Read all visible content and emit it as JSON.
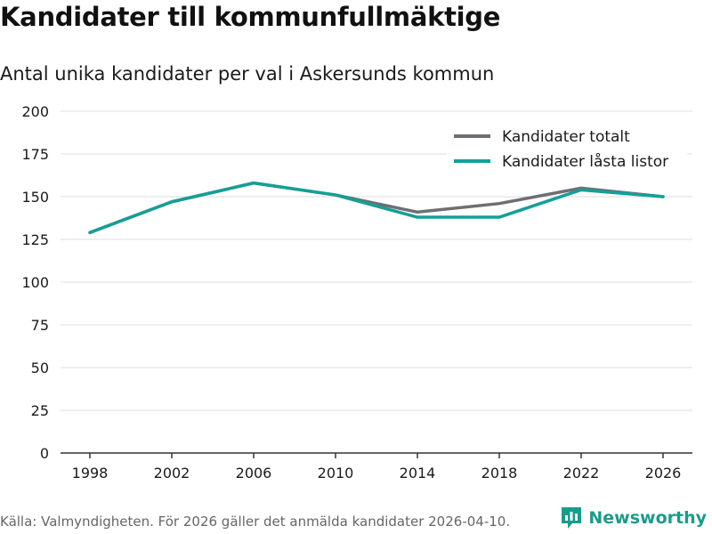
{
  "header": {
    "title": "Kandidater till kommunfullmäktige",
    "subtitle": "Antal unika kandidater per val i Askersunds kommun"
  },
  "footer": {
    "source": "Källa: Valmyndigheten. För 2026 gäller det anmälda kandidater 2026-04-10.",
    "brand": "Newsworthy",
    "brand_icon": "bar-chart-logo-icon"
  },
  "colors": {
    "total": "#6e6e73",
    "locked": "#14a096",
    "brand": "#1a9c8a",
    "grid": "#dcdcdc",
    "axis": "#333333"
  },
  "chart_data": {
    "type": "line",
    "title": "Kandidater till kommunfullmäktige",
    "subtitle": "Antal unika kandidater per val i Askersunds kommun",
    "xlabel": "",
    "ylabel": "",
    "x": [
      "1998",
      "2002",
      "2006",
      "2010",
      "2014",
      "2018",
      "2022",
      "2026"
    ],
    "ylim": [
      0,
      200
    ],
    "yticks": [
      0,
      25,
      50,
      75,
      100,
      125,
      150,
      175,
      200
    ],
    "grid": true,
    "legend_position": "top-right",
    "series": [
      {
        "name": "Kandidater totalt",
        "color": "#6e6e73",
        "values": [
          129,
          147,
          158,
          151,
          141,
          146,
          155,
          150
        ]
      },
      {
        "name": "Kandidater låsta listor",
        "color": "#14a096",
        "values": [
          129,
          147,
          158,
          151,
          138,
          138,
          154,
          150
        ]
      }
    ]
  }
}
